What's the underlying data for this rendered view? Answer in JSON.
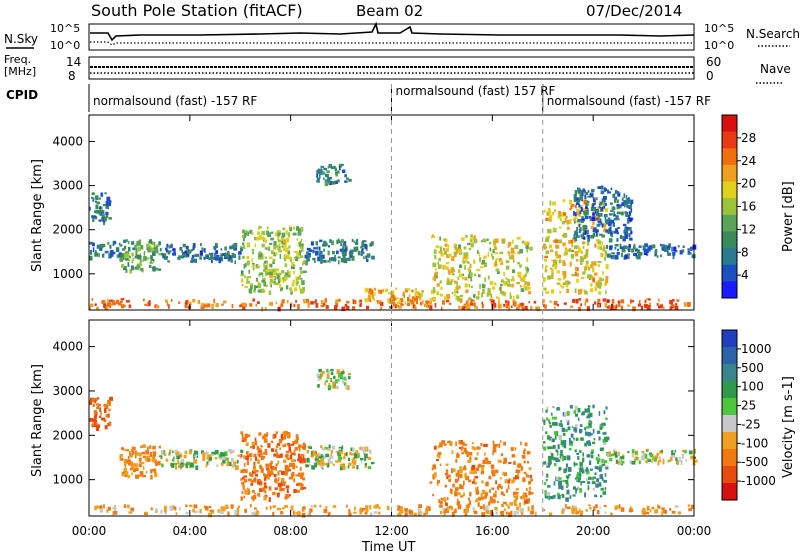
{
  "header": {
    "station": "South Pole Station (fitACF)",
    "beam": "Beam 02",
    "date": "07/Dec/2014"
  },
  "sky_panel": {
    "left_label": "N.Sky",
    "right_label": "N.Search",
    "left_ticks": [
      "10^5",
      "10^0"
    ],
    "right_ticks": [
      "10^5",
      "10^0"
    ]
  },
  "freq_panel": {
    "left_label_1": "Freq.",
    "left_label_2": "[MHz]",
    "right_label": "Nave",
    "left_ticks": [
      "14",
      "8"
    ],
    "right_ticks": [
      "60",
      "0"
    ]
  },
  "cpid": {
    "label": "CPID",
    "segments": [
      {
        "text": "normalsound (fast) -157 RF",
        "start_hour": 0
      },
      {
        "text": "normalsound (fast) 157 RF",
        "start_hour": 12
      },
      {
        "text": "normalsound (fast) -157 RF",
        "start_hour": 18
      }
    ]
  },
  "axes": {
    "x_tick_labels": [
      "00:00",
      "04:00",
      "08:00",
      "12:00",
      "16:00",
      "20:00",
      "00:00"
    ],
    "x_ticks_hours": [
      0,
      4,
      8,
      12,
      16,
      20,
      24
    ],
    "xlabel": "Time UT",
    "ylabel": "Slant Range [km]",
    "y_tick_labels": [
      "1000",
      "2000",
      "3000",
      "4000"
    ],
    "y_ticks": [
      1000,
      2000,
      3000,
      4000
    ],
    "ylim": [
      180,
      4600
    ],
    "xlim": [
      0,
      24
    ]
  },
  "power_colorbar": {
    "label": "Power [dB]",
    "ticks": [
      "4",
      "8",
      "12",
      "16",
      "20",
      "24",
      "28"
    ],
    "colors": [
      "#1a1aff",
      "#1c50c0",
      "#2a7a90",
      "#3a8a5a",
      "#5aa35a",
      "#9bc43a",
      "#e0d020",
      "#f0a020",
      "#f07010",
      "#e83a10",
      "#d81010"
    ]
  },
  "velocity_colorbar": {
    "label": "Velocity [m s-1]",
    "ticks": [
      "1000",
      "500",
      "100",
      "25",
      "-25",
      "-100",
      "-500",
      "-1000"
    ],
    "colors": [
      "#1f3fbf",
      "#2c63a8",
      "#38858e",
      "#2e9a4a",
      "#4cc63a",
      "#c8c8c8",
      "#f0a020",
      "#f07a10",
      "#e84a10",
      "#d81010"
    ]
  },
  "chart_data": {
    "type": "heatmap",
    "title": "South Pole Station (fitACF)",
    "xlabel": "Time UT",
    "ylabel": "Slant Range [km]",
    "xlim": [
      0,
      24
    ],
    "ylim": [
      180,
      4600
    ],
    "panels": [
      {
        "name": "Power",
        "colorbar_label": "Power [dB]",
        "colorbar_range": [
          0,
          32
        ],
        "echo_regions": [
          {
            "t_start": 0.0,
            "t_end": 24.0,
            "range_start": 250,
            "range_end": 450,
            "value": 26
          },
          {
            "t_start": 0.0,
            "t_end": 1.3,
            "range_start": 1400,
            "range_end": 1750,
            "value": 8
          },
          {
            "t_start": 0.0,
            "t_end": 0.8,
            "range_start": 2200,
            "range_end": 2900,
            "value": 6
          },
          {
            "t_start": 1.2,
            "t_end": 2.8,
            "range_start": 1100,
            "range_end": 1800,
            "value": 12
          },
          {
            "t_start": 2.8,
            "t_end": 6.0,
            "range_start": 1300,
            "range_end": 1700,
            "value": 6
          },
          {
            "t_start": 6.0,
            "t_end": 8.5,
            "range_start": 600,
            "range_end": 2100,
            "value": 16
          },
          {
            "t_start": 8.5,
            "t_end": 11.2,
            "range_start": 1300,
            "range_end": 1800,
            "value": 7
          },
          {
            "t_start": 9.0,
            "t_end": 10.3,
            "range_start": 3100,
            "range_end": 3500,
            "value": 8
          },
          {
            "t_start": 10.8,
            "t_end": 13.5,
            "range_start": 350,
            "range_end": 700,
            "value": 22
          },
          {
            "t_start": 13.5,
            "t_end": 17.5,
            "range_start": 450,
            "range_end": 1900,
            "value": 18
          },
          {
            "t_start": 18.0,
            "t_end": 20.5,
            "range_start": 600,
            "range_end": 2700,
            "value": 20
          },
          {
            "t_start": 19.2,
            "t_end": 21.5,
            "range_start": 1800,
            "range_end": 3000,
            "value": 6
          },
          {
            "t_start": 20.5,
            "t_end": 24.0,
            "range_start": 1400,
            "range_end": 1700,
            "value": 6
          }
        ]
      },
      {
        "name": "Velocity",
        "colorbar_label": "Velocity [m s-1]",
        "colorbar_range": [
          -1000,
          1000
        ],
        "echo_regions": [
          {
            "t_start": 0.0,
            "t_end": 24.0,
            "range_start": 250,
            "range_end": 450,
            "value": -150
          },
          {
            "t_start": 0.0,
            "t_end": 0.8,
            "range_start": 2200,
            "range_end": 2900,
            "value": -400
          },
          {
            "t_start": 1.2,
            "t_end": 2.8,
            "range_start": 1100,
            "range_end": 1800,
            "value": -200
          },
          {
            "t_start": 2.8,
            "t_end": 6.0,
            "range_start": 1300,
            "range_end": 1700,
            "value": 0
          },
          {
            "t_start": 6.0,
            "t_end": 8.5,
            "range_start": 600,
            "range_end": 2100,
            "value": -300
          },
          {
            "t_start": 8.5,
            "t_end": 11.2,
            "range_start": 1300,
            "range_end": 1800,
            "value": 0
          },
          {
            "t_start": 9.0,
            "t_end": 10.3,
            "range_start": 3100,
            "range_end": 3500,
            "value": 0
          },
          {
            "t_start": 13.5,
            "t_end": 17.5,
            "range_start": 450,
            "range_end": 1900,
            "value": -250
          },
          {
            "t_start": 18.0,
            "t_end": 20.5,
            "range_start": 600,
            "range_end": 2700,
            "value": 150
          },
          {
            "t_start": 20.5,
            "t_end": 24.0,
            "range_start": 1400,
            "range_end": 1700,
            "value": 0
          }
        ]
      }
    ]
  }
}
